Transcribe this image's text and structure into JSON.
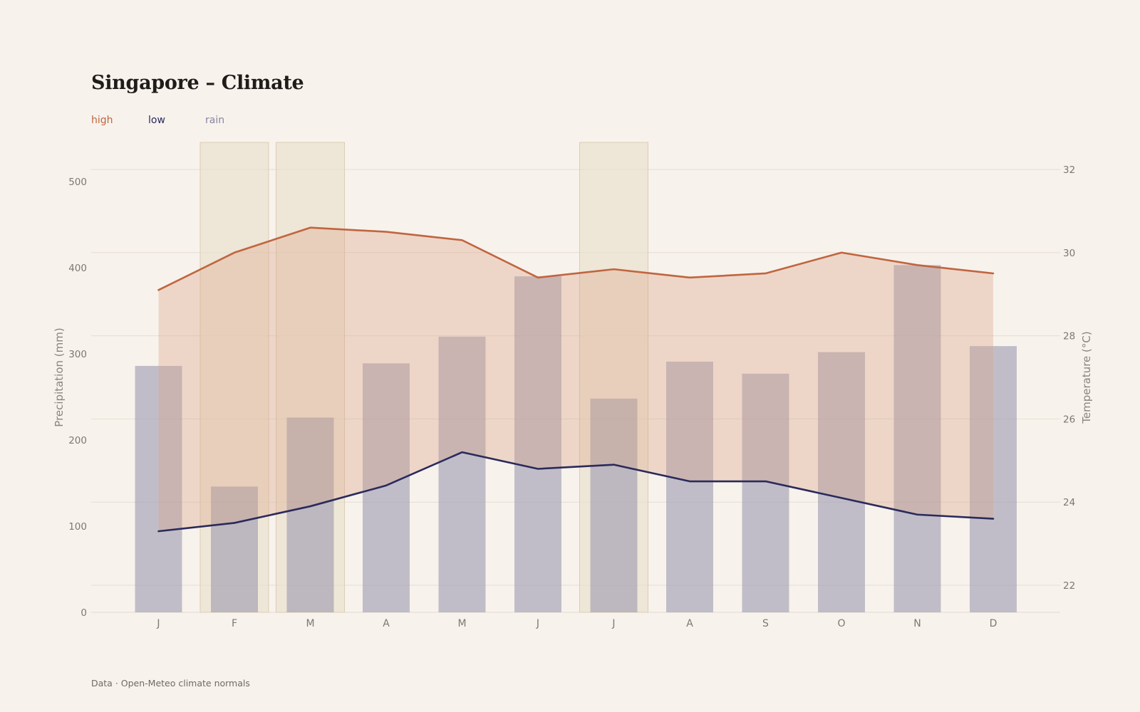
{
  "chart_data": {
    "type": "bar",
    "title": "Singapore – Climate",
    "source": "Data · Open-Meteo climate normals",
    "categories": [
      "J",
      "F",
      "M",
      "A",
      "M",
      "J",
      "J",
      "A",
      "S",
      "O",
      "N",
      "D"
    ],
    "highlighted_months": [
      1,
      2,
      6
    ],
    "y_left": {
      "label": "Precipitation (mm)",
      "ticks": [
        0,
        100,
        200,
        300,
        400,
        500
      ],
      "range": [
        0,
        500
      ]
    },
    "y_right": {
      "label": "Temperature (°C)",
      "ticks": [
        22,
        24,
        26,
        28,
        30,
        32
      ],
      "range": [
        21.35,
        32.65
      ]
    },
    "legend": [
      {
        "key": "high",
        "label": "high",
        "color": "#c0653f"
      },
      {
        "key": "low",
        "label": "low",
        "color": "#2a2a5c"
      },
      {
        "key": "rain",
        "label": "rain",
        "color": "#8a85a3"
      }
    ],
    "series": [
      {
        "name": "rain",
        "axis": "left",
        "type": "bar",
        "values": [
          286,
          146,
          226,
          289,
          320,
          390,
          248,
          291,
          277,
          302,
          403,
          309
        ]
      },
      {
        "name": "high",
        "axis": "right",
        "type": "line",
        "values": [
          29.1,
          30.0,
          30.6,
          30.5,
          30.3,
          29.4,
          29.6,
          29.4,
          29.5,
          30.0,
          29.7,
          29.5
        ]
      },
      {
        "name": "low",
        "axis": "right",
        "type": "line",
        "values": [
          23.3,
          23.5,
          23.9,
          24.4,
          25.2,
          24.8,
          24.9,
          24.5,
          24.5,
          24.1,
          23.7,
          23.6
        ]
      }
    ],
    "grid": true,
    "legend_position": "top-left"
  }
}
